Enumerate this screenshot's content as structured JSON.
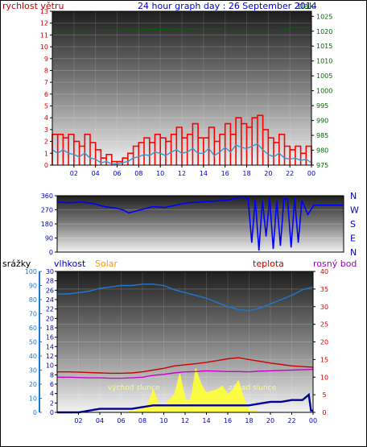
{
  "title": "24 hour graph day : 26 September 2014",
  "x_ticks": [
    "02",
    "04",
    "06",
    "08",
    "10",
    "12",
    "14",
    "16",
    "18",
    "20",
    "22",
    "00"
  ],
  "colors": {
    "wind_gust": "#ff0000",
    "wind_avg": "#3399cc",
    "pressure": "#006600",
    "direction": "#0000ff",
    "humidity": "#1e78d2",
    "temperature": "#cc0000",
    "dewpoint": "#cc00cc",
    "solar": "#ffff33",
    "rain": "#000099",
    "label_blue": "#0000cc",
    "label_orange": "#ff9900",
    "label_purple": "#9900cc"
  },
  "chart_data": [
    {
      "type": "line",
      "name": "wind-pressure",
      "left_axis_label": "rychlost větru",
      "right_axis_label": "tlak",
      "y_left": {
        "min": 0,
        "max": 13,
        "ticks": [
          0,
          1,
          2,
          3,
          4,
          5,
          6,
          7,
          8,
          9,
          10,
          11,
          12,
          13
        ]
      },
      "y_right": {
        "min": 975,
        "max": 1026.7,
        "ticks": [
          975,
          980,
          985,
          990,
          995,
          1000,
          1005,
          1010,
          1015,
          1020,
          1025
        ]
      },
      "series": [
        {
          "label": "gust",
          "axis": "left",
          "color": "wind_gust",
          "x": [
            0,
            0.5,
            1,
            1.5,
            2,
            2.5,
            3,
            3.5,
            4,
            4.5,
            5,
            5.5,
            6,
            6.5,
            7,
            7.5,
            8,
            8.5,
            9,
            9.5,
            10,
            10.5,
            11,
            11.5,
            12,
            12.5,
            13,
            13.5,
            14,
            14.5,
            15,
            15.5,
            16,
            16.5,
            17,
            17.5,
            18,
            18.5,
            19,
            19.5,
            20,
            20.5,
            21,
            21.5,
            22,
            22.5,
            23,
            23.5,
            24
          ],
          "y": [
            2.6,
            2.6,
            2.3,
            2.6,
            2.0,
            1.6,
            2.6,
            1.9,
            1.3,
            0.6,
            0.9,
            0.3,
            0.3,
            0.6,
            1.0,
            1.6,
            1.9,
            2.3,
            1.9,
            2.6,
            2.3,
            2.0,
            2.6,
            3.2,
            2.3,
            2.6,
            3.5,
            2.3,
            2.3,
            3.2,
            2.0,
            2.6,
            3.5,
            2.6,
            4.0,
            3.5,
            3.2,
            4.0,
            4.2,
            3.0,
            2.3,
            1.9,
            2.6,
            1.6,
            1.3,
            1.6,
            1.0,
            1.6,
            0
          ]
        },
        {
          "label": "average",
          "axis": "left",
          "color": "wind_avg",
          "x": [
            0,
            0.5,
            1,
            1.5,
            2,
            2.5,
            3,
            3.5,
            4,
            4.5,
            5,
            5.5,
            6,
            6.5,
            7,
            7.5,
            8,
            8.5,
            9,
            9.5,
            10,
            10.5,
            11,
            11.5,
            12,
            12.5,
            13,
            13.5,
            14,
            14.5,
            15,
            15.5,
            16,
            16.5,
            17,
            17.5,
            18,
            18.5,
            19,
            19.5,
            20,
            20.5,
            21,
            21.5,
            22,
            22.5,
            23,
            23.5,
            24
          ],
          "y": [
            1.3,
            1.0,
            1.3,
            1.0,
            0.9,
            0.7,
            1.0,
            0.6,
            0.5,
            0.2,
            0.3,
            0.1,
            0.1,
            0.2,
            0.3,
            0.6,
            0.7,
            0.9,
            0.8,
            1.1,
            1.0,
            0.8,
            1.1,
            1.3,
            1.0,
            1.1,
            1.4,
            1.0,
            1.0,
            1.4,
            0.8,
            1.1,
            1.5,
            1.1,
            1.7,
            1.5,
            1.4,
            1.6,
            1.8,
            1.3,
            0.9,
            0.7,
            1.0,
            0.6,
            0.5,
            0.6,
            0.4,
            0.5,
            0.2
          ]
        },
        {
          "label": "pressure",
          "axis": "right",
          "color": "pressure",
          "x": [
            0,
            1,
            2,
            3,
            4,
            5,
            6,
            7,
            8,
            9,
            10,
            11,
            12,
            13,
            14,
            15,
            16,
            16.3,
            17,
            18,
            19,
            20,
            21,
            22,
            22.3,
            23,
            24
          ],
          "y": [
            1020.2,
            1020.2,
            1020.2,
            1020.3,
            1020.3,
            1020.4,
            1020.4,
            1020.5,
            1020.5,
            1020.6,
            1020.6,
            1020.7,
            1020.7,
            1020.8,
            1020.8,
            1020.8,
            1020.8,
            1020.3,
            1020.3,
            1020.2,
            1020.2,
            1020.3,
            1020.4,
            1020.8,
            1021.3,
            1021.3,
            1021.4
          ]
        }
      ]
    },
    {
      "type": "line",
      "name": "wind-direction",
      "y_left": {
        "min": 0,
        "max": 360,
        "ticks": [
          0,
          90,
          180,
          270,
          360
        ],
        "tick_labels": [
          "0",
          "90",
          "180",
          "270",
          "360"
        ]
      },
      "y_right_labels": [
        "N",
        "W",
        "S",
        "E",
        "N"
      ],
      "series": [
        {
          "label": "direction",
          "color": "direction",
          "x": [
            0,
            1,
            2,
            3,
            3.5,
            4,
            5,
            5.5,
            6,
            7,
            8,
            9,
            10,
            10.5,
            11,
            12,
            13,
            14,
            14.5,
            15,
            15.5,
            16,
            16.3,
            16.6,
            16.9,
            17.2,
            17.5,
            17.8,
            18.1,
            18.4,
            18.7,
            19.0,
            19.3,
            19.6,
            19.9,
            20.2,
            20.5,
            21,
            21.5,
            22,
            23,
            24
          ],
          "y": [
            320,
            315,
            320,
            310,
            300,
            290,
            280,
            270,
            250,
            270,
            290,
            285,
            300,
            310,
            315,
            320,
            325,
            330,
            335,
            345,
            350,
            340,
            60,
            340,
            10,
            330,
            100,
            345,
            20,
            330,
            40,
            340,
            340,
            30,
            345,
            60,
            330,
            240,
            300,
            300,
            300,
            300
          ]
        }
      ]
    },
    {
      "type": "line",
      "name": "humidity-temperature",
      "labels": {
        "rain": "srážky",
        "humidity": "vlhkost",
        "solar": "Solar",
        "temperature": "teplota",
        "dewpoint": "rosný bod"
      },
      "annotations": {
        "sunrise": "východ slunce",
        "sunset": "západ slunce"
      },
      "y_rain": {
        "min": 0,
        "max": 100,
        "ticks": [
          0,
          10,
          20,
          30,
          40,
          50,
          60,
          70,
          80,
          90,
          100
        ]
      },
      "y_humidity": {
        "min": 0,
        "max": 30,
        "ticks": [
          0,
          2,
          4,
          6,
          8,
          10,
          12,
          14,
          16,
          18,
          20,
          22,
          24,
          26,
          28,
          30
        ]
      },
      "y_temperature": {
        "min": 0,
        "max": 40,
        "ticks": [
          0,
          5,
          10,
          15,
          20,
          25,
          30,
          35,
          40
        ]
      },
      "series": [
        {
          "label": "humidity",
          "axis": "humidity",
          "color": "humidity",
          "x": [
            0,
            1,
            2,
            3,
            4,
            5,
            6,
            7,
            8,
            9,
            10,
            11,
            12,
            13,
            14,
            15,
            16,
            17,
            18,
            19,
            20,
            21,
            22,
            23,
            24
          ],
          "y": [
            84,
            84,
            85,
            86,
            88,
            89,
            90,
            90,
            91,
            91,
            90,
            87,
            85,
            83,
            81,
            78,
            75,
            73,
            72,
            74,
            77,
            80,
            83,
            87,
            89
          ]
        },
        {
          "label": "temperature",
          "axis": "temperature",
          "color": "temperature",
          "x": [
            0,
            1,
            2,
            3,
            4,
            5,
            6,
            7,
            8,
            9,
            10,
            11,
            12,
            13,
            14,
            15,
            16,
            17,
            18,
            19,
            20,
            21,
            22,
            23,
            24
          ],
          "y": [
            11.5,
            11.5,
            11.4,
            11.3,
            11.2,
            11.1,
            11.1,
            11.2,
            11.5,
            12.0,
            12.5,
            13.2,
            13.5,
            13.8,
            14.2,
            14.7,
            15.2,
            15.5,
            15.0,
            14.5,
            14.0,
            13.6,
            13.2,
            13.0,
            12.8
          ]
        },
        {
          "label": "dewpoint",
          "axis": "temperature",
          "color": "dewpoint",
          "x": [
            0,
            1,
            2,
            3,
            4,
            5,
            6,
            7,
            8,
            9,
            10,
            11,
            12,
            13,
            14,
            15,
            16,
            17,
            18,
            19,
            20,
            21,
            22,
            23,
            24
          ],
          "y": [
            10.0,
            10.0,
            9.9,
            9.8,
            9.8,
            9.7,
            9.7,
            9.8,
            10.0,
            10.5,
            10.8,
            11.2,
            11.5,
            11.6,
            11.8,
            11.7,
            11.6,
            11.6,
            11.5,
            11.7,
            11.8,
            11.9,
            12.0,
            12.1,
            12.2
          ]
        },
        {
          "label": "solar",
          "axis": "temperature",
          "color": "solar",
          "x": [
            0,
            6.5,
            7,
            7.5,
            8,
            8.5,
            9,
            9.5,
            10,
            10.5,
            11,
            11.5,
            12,
            12.3,
            12.6,
            13,
            13.5,
            14,
            14.5,
            15,
            15.5,
            16,
            16.5,
            17,
            17.5,
            18,
            18.5,
            19,
            24
          ],
          "y": [
            0,
            0,
            0.5,
            0.6,
            1.0,
            2.0,
            6.5,
            2.5,
            1.5,
            3.5,
            5.0,
            11.0,
            4.0,
            3.0,
            4.5,
            12.5,
            8.0,
            5.5,
            6.0,
            6.5,
            7.5,
            5.0,
            6.5,
            9.0,
            4.0,
            0.5,
            0.5,
            0,
            0
          ]
        },
        {
          "label": "rain",
          "axis": "rain",
          "color": "rain",
          "x": [
            0,
            1,
            2,
            3,
            4,
            5,
            6,
            7,
            8,
            9,
            10,
            11,
            12,
            13,
            14,
            15,
            16,
            17,
            18,
            19,
            20,
            21,
            22,
            23,
            23.6,
            23.8,
            24
          ],
          "y": [
            0,
            0,
            0,
            0.5,
            1,
            1,
            1,
            1,
            1.5,
            2,
            2,
            2,
            2,
            2,
            2,
            2,
            2,
            2,
            2,
            2.5,
            3,
            3,
            3.5,
            3.5,
            5,
            0.5,
            0.5
          ]
        }
      ]
    }
  ]
}
